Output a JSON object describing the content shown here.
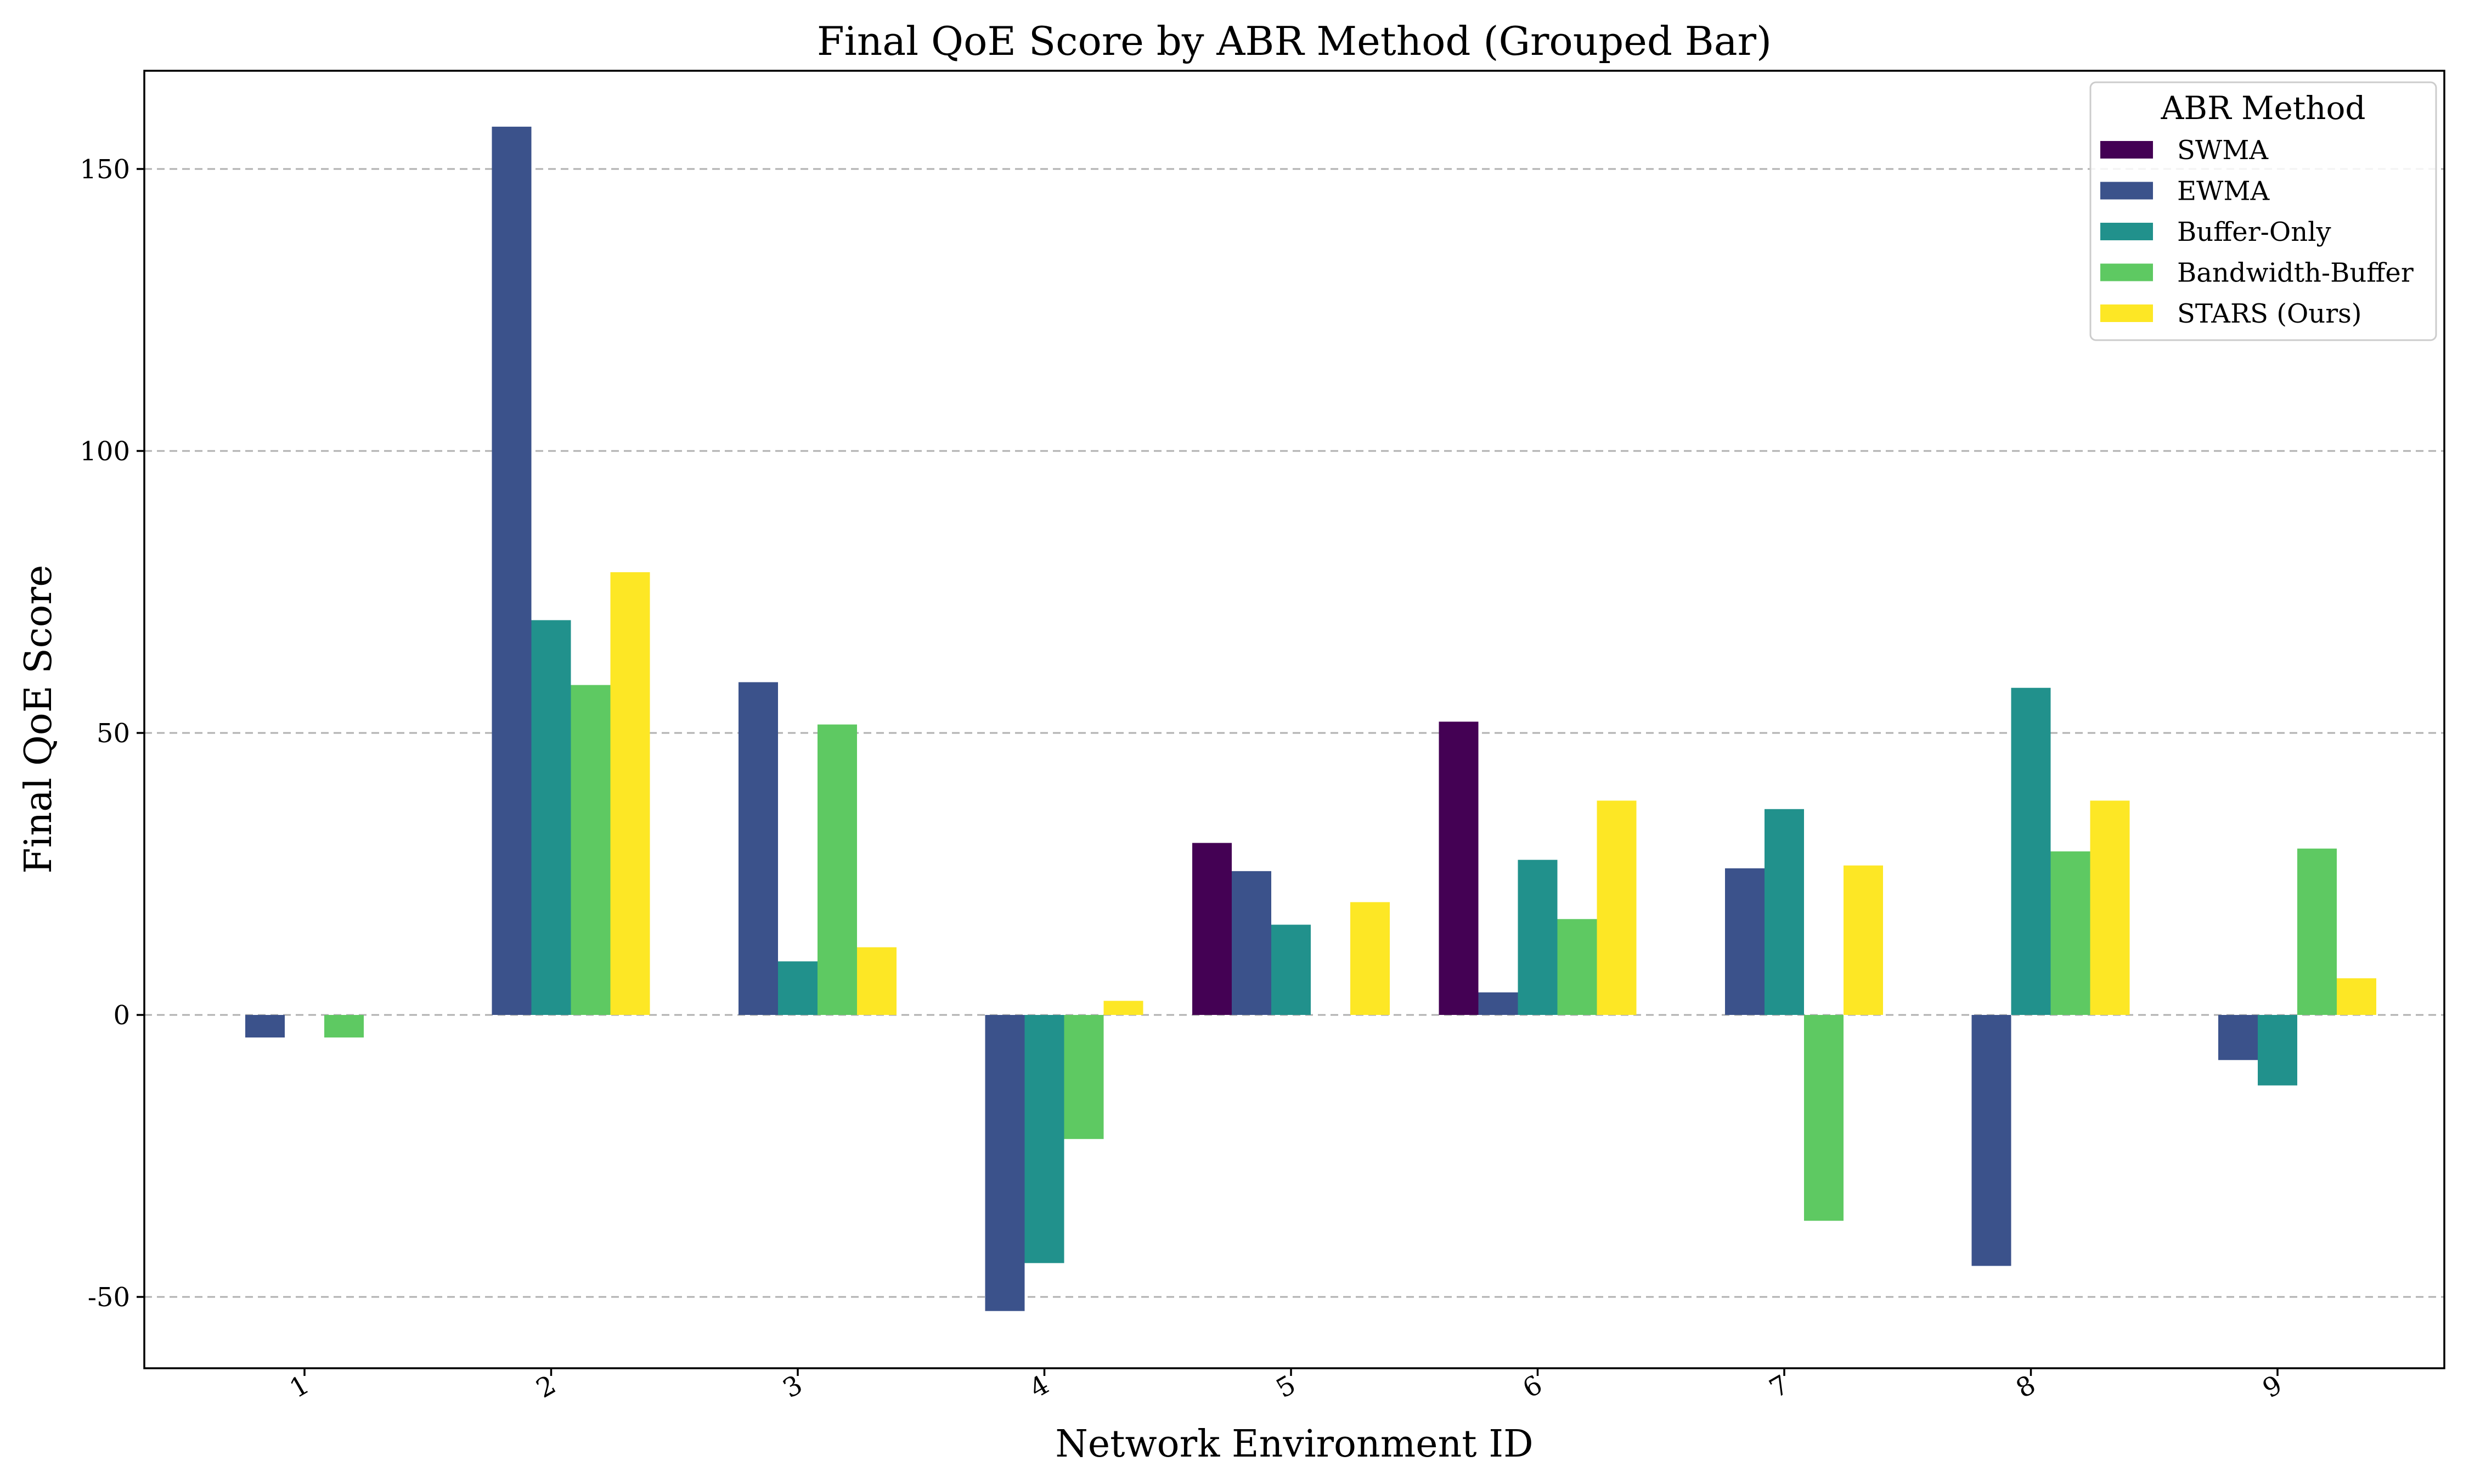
{
  "chart_data": {
    "type": "bar",
    "title": "Final QoE Score by ABR Method (Grouped Bar)",
    "xlabel": "Network Environment ID",
    "ylabel": "Final QoE Score",
    "categories": [
      "1",
      "2",
      "3",
      "4",
      "5",
      "6",
      "7",
      "8",
      "9"
    ],
    "ylim": [
      -63,
      168
    ],
    "yticks": [
      -50,
      0,
      50,
      100,
      150
    ],
    "grid": "y, dashed",
    "legend": {
      "title": "ABR Method",
      "position": "top-right"
    },
    "series": [
      {
        "name": "SWMA",
        "color": "#440154",
        "values": [
          0,
          0,
          0,
          0,
          30.5,
          52,
          0,
          0,
          0
        ]
      },
      {
        "name": "EWMA",
        "color": "#3b528b",
        "values": [
          -4,
          157.5,
          59,
          -52.5,
          25.5,
          4,
          26,
          -44.5,
          -8
        ]
      },
      {
        "name": "Buffer-Only",
        "color": "#21918c",
        "values": [
          0,
          70,
          9.5,
          -44,
          16,
          27.5,
          36.5,
          58,
          -12.5
        ]
      },
      {
        "name": "Bandwidth-Buffer",
        "color": "#5ec962",
        "values": [
          -4,
          58.5,
          51.5,
          -22,
          0,
          17,
          -36.5,
          29,
          29.5
        ]
      },
      {
        "name": "STARS (Ours)",
        "color": "#fde725",
        "values": [
          0,
          78.5,
          12,
          2.5,
          20,
          38,
          26.5,
          38,
          6.5
        ]
      }
    ]
  }
}
